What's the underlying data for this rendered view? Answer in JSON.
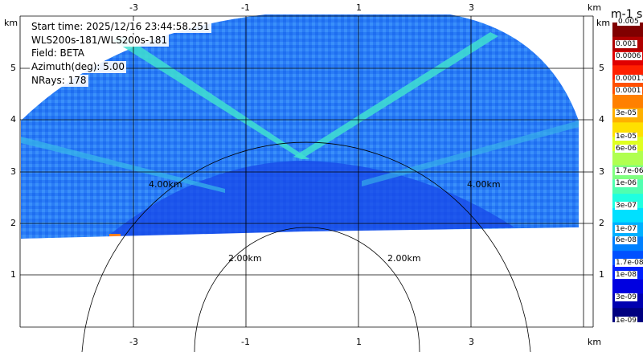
{
  "plot_info": {
    "start_time": "Start time: 2025/12/16 23:44:58.251",
    "instrument": "WLS200s-181/WLS200s-181",
    "field": "Field: BETA",
    "azimuth": "Azimuth(deg): 5.00",
    "nrays": "NRays: 178"
  },
  "axes": {
    "x_ticks": [
      "-3",
      "-1",
      "1",
      "3"
    ],
    "x_unit": "km",
    "y_ticks": [
      "1",
      "2",
      "3",
      "4",
      "5"
    ],
    "y_unit": "km"
  },
  "range_rings": {
    "labels_outer": [
      "4.00km",
      "4.00km"
    ],
    "labels_inner": [
      "2.00km",
      "2.00km"
    ]
  },
  "colorbar": {
    "units": "m-1 sr-1",
    "top_label": "0.005",
    "labels": [
      "0.001",
      "0.0006",
      "0.00017",
      "0.0001",
      "3e-05",
      "1e-05",
      "6e-06",
      "1.7e-06",
      "1e-06",
      "3e-07",
      "1e-07",
      "6e-08",
      "1.7e-08",
      "1e-08",
      "3e-09",
      "1e-09"
    ],
    "colors": [
      "#800000",
      "#b00000",
      "#e00000",
      "#ff2000",
      "#ff5000",
      "#ff8000",
      "#ffb000",
      "#ffe000",
      "#e0ff20",
      "#b0ff50",
      "#80ff80",
      "#50ffb0",
      "#20ffe0",
      "#00e0ff",
      "#00b0ff",
      "#0080ff",
      "#0050ff",
      "#0020ff",
      "#0000e0",
      "#0000b0",
      "#000080"
    ]
  },
  "colors": {
    "background_field": "#1e78ff",
    "low_signal": "#1040e8",
    "layer_signal": "#30d8d0",
    "grid": "#000000"
  }
}
